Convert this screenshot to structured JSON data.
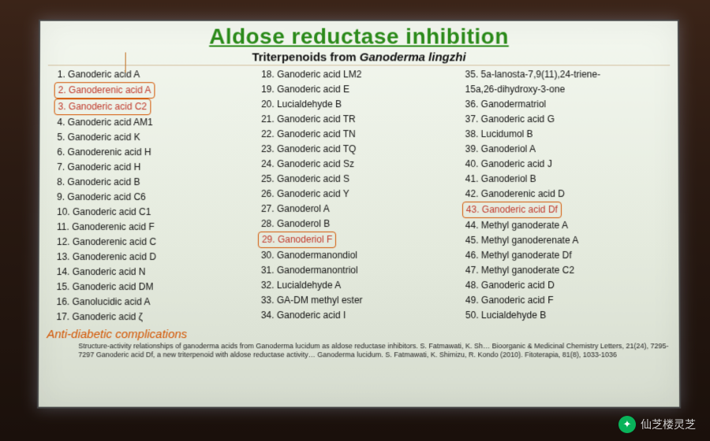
{
  "title": "Aldose reductase inhibition",
  "subtitle_prefix": "Triterpenoids from ",
  "subtitle_italic": "Ganoderma lingzhi",
  "columns": [
    [
      {
        "n": "1.",
        "t": "Ganoderic acid A",
        "hl": false
      },
      {
        "n": "2.",
        "t": "Ganoderenic acid A",
        "hl": true
      },
      {
        "n": "3.",
        "t": "Ganoderic acid C2",
        "hl": true
      },
      {
        "n": "4.",
        "t": "Ganoderic acid AM1",
        "hl": false
      },
      {
        "n": "5.",
        "t": "Ganoderic acid K",
        "hl": false
      },
      {
        "n": "6.",
        "t": "Ganoderenic acid H",
        "hl": false
      },
      {
        "n": "7.",
        "t": "Ganoderic acid H",
        "hl": false
      },
      {
        "n": "8.",
        "t": "Ganoderic acid B",
        "hl": false
      },
      {
        "n": "9.",
        "t": "Ganoderic acid C6",
        "hl": false
      },
      {
        "n": "10.",
        "t": "Ganoderic acid C1",
        "hl": false
      },
      {
        "n": "11.",
        "t": "Ganoderenic acid F",
        "hl": false
      },
      {
        "n": "12.",
        "t": "Ganoderenic acid C",
        "hl": false
      },
      {
        "n": "13.",
        "t": "Ganoderenic acid D",
        "hl": false
      },
      {
        "n": "14.",
        "t": "Ganoderic acid N",
        "hl": false
      },
      {
        "n": "15.",
        "t": "Ganoderic acid DM",
        "hl": false
      },
      {
        "n": "16.",
        "t": "Ganolucidic acid A",
        "hl": false
      },
      {
        "n": "17.",
        "t": "Ganoderic acid ζ",
        "hl": false
      }
    ],
    [
      {
        "n": "18.",
        "t": "Ganoderic acid LM2",
        "hl": false
      },
      {
        "n": "19.",
        "t": "Ganoderic acid E",
        "hl": false
      },
      {
        "n": "20.",
        "t": "Lucialdehyde B",
        "hl": false
      },
      {
        "n": "21.",
        "t": "Ganoderic acid TR",
        "hl": false
      },
      {
        "n": "22.",
        "t": "Ganoderic acid TN",
        "hl": false
      },
      {
        "n": "23.",
        "t": "Ganoderic acid TQ",
        "hl": false
      },
      {
        "n": "24.",
        "t": "Ganoderic acid Sz",
        "hl": false
      },
      {
        "n": "25.",
        "t": "Ganoderic acid S",
        "hl": false
      },
      {
        "n": "26.",
        "t": "Ganoderic acid Y",
        "hl": false
      },
      {
        "n": "27.",
        "t": "Ganoderol A",
        "hl": false
      },
      {
        "n": "28.",
        "t": "Ganoderol B",
        "hl": false
      },
      {
        "n": "29.",
        "t": "Ganoderiol F",
        "hl": true
      },
      {
        "n": "30.",
        "t": "Ganodermanondiol",
        "hl": false
      },
      {
        "n": "31.",
        "t": "Ganodermanontriol",
        "hl": false
      },
      {
        "n": "32.",
        "t": "Lucialdehyde A",
        "hl": false
      },
      {
        "n": "33.",
        "t": "GA-DM methyl ester",
        "hl": false
      },
      {
        "n": "34.",
        "t": "Ganoderic acid I",
        "hl": false
      }
    ],
    [
      {
        "n": "35.",
        "t": "5a-lanosta-7,9(11),24-triene-",
        "hl": false
      },
      {
        "n": "",
        "t": "15a,26-dihydroxy-3-one",
        "hl": false
      },
      {
        "n": "36.",
        "t": "Ganodermatriol",
        "hl": false
      },
      {
        "n": "37.",
        "t": "Ganoderic acid G",
        "hl": false
      },
      {
        "n": "38.",
        "t": "Lucidumol B",
        "hl": false
      },
      {
        "n": "39.",
        "t": "Ganoderiol A",
        "hl": false
      },
      {
        "n": "40.",
        "t": "Ganoderic acid J",
        "hl": false
      },
      {
        "n": "41.",
        "t": "Ganoderiol B",
        "hl": false
      },
      {
        "n": "42.",
        "t": "Ganoderenic acid D",
        "hl": false
      },
      {
        "n": "43.",
        "t": "Ganoderic acid Df",
        "hl": true
      },
      {
        "n": "44.",
        "t": "Methyl ganoderate A",
        "hl": false
      },
      {
        "n": "45.",
        "t": "Methyl ganoderenate A",
        "hl": false
      },
      {
        "n": "46.",
        "t": "Methyl ganoderate Df",
        "hl": false
      },
      {
        "n": "47.",
        "t": "Methyl ganoderate C2",
        "hl": false
      },
      {
        "n": "48.",
        "t": "Ganoderic acid D",
        "hl": false
      },
      {
        "n": "49.",
        "t": "Ganoderic acid F",
        "hl": false
      },
      {
        "n": "50.",
        "t": "Lucialdehyde B",
        "hl": false
      }
    ]
  ],
  "complications": "Anti-diabetic complications",
  "refs": "Structure-activity relationships of ganoderma acids from Ganoderma lucidum as aldose reductase inhibitors. S. Fatmawati, K. Sh… Bioorganic & Medicinal Chemistry Letters, 21(24), 7295-7297 Ganoderic acid Df, a new triterpenoid with aldose reductase activity… Ganoderma lucidum. S. Fatmawati, K. Shimizu, R. Kondo (2010). Fitoterapia, 81(8), 1033-1036",
  "watermark": "仙芝楼灵芝"
}
